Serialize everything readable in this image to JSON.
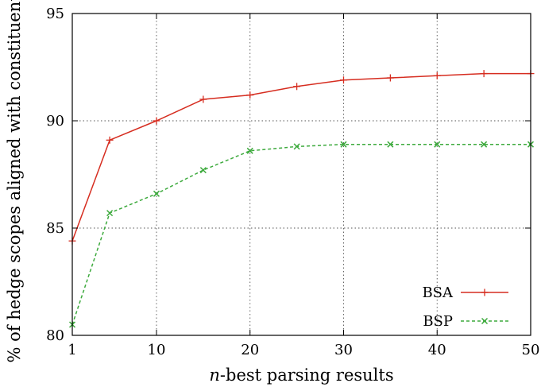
{
  "chart_data": {
    "type": "line",
    "xlabel_prefix": "n",
    "xlabel_rest": "-best parsing results",
    "ylabel": "% of hedge scopes aligned with constituents",
    "xlim": [
      1,
      50
    ],
    "ylim": [
      80,
      95
    ],
    "x_ticks": [
      1,
      10,
      20,
      30,
      40,
      50
    ],
    "y_ticks": [
      80,
      85,
      90,
      95
    ],
    "grid": true,
    "grid_style": "dotted",
    "legend_position": "bottom-right",
    "x": [
      1,
      5,
      10,
      15,
      20,
      25,
      30,
      35,
      40,
      45,
      50
    ],
    "series": [
      {
        "name": "BSA",
        "color": "#d62d20",
        "marker": "plus",
        "line_style": "solid",
        "values": [
          84.4,
          89.1,
          90.0,
          91.0,
          91.2,
          91.6,
          91.9,
          92.0,
          92.1,
          92.2,
          92.2
        ]
      },
      {
        "name": "BSP",
        "color": "#3daa3d",
        "marker": "cross",
        "line_style": "dashed",
        "values": [
          80.5,
          85.7,
          86.6,
          87.7,
          88.6,
          88.8,
          88.9,
          88.9,
          88.9,
          88.9,
          88.9
        ]
      }
    ]
  }
}
